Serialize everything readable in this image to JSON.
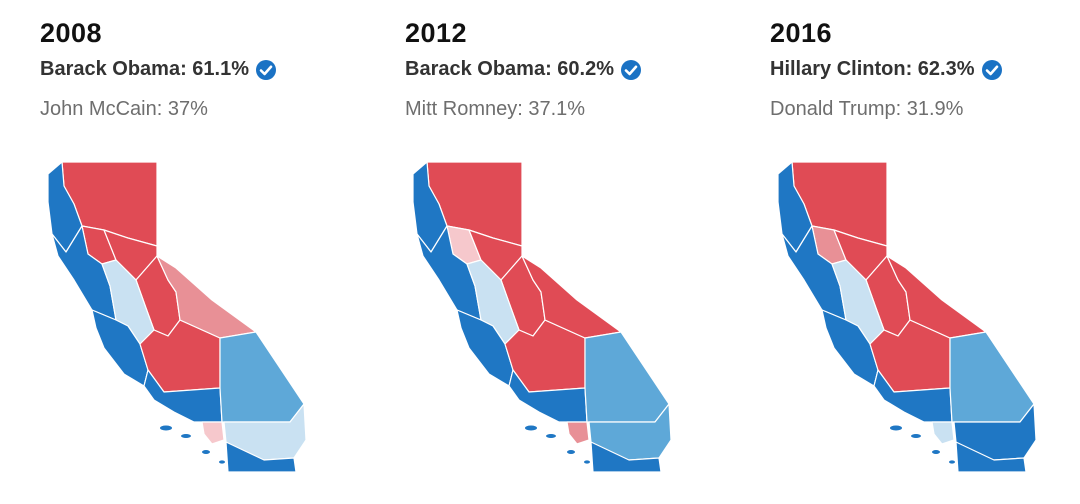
{
  "colors": {
    "dem_strong": "#1f77c4",
    "dem_medium": "#5ea8d8",
    "dem_light": "#c9e1f2",
    "rep_light": "#f6c8cc",
    "rep_medium": "#e89096",
    "rep_strong": "#e04b55",
    "check": "#1a72c4",
    "county_border": "#ffffff"
  },
  "icons": {
    "winner_check": "check-circle-icon"
  },
  "panels": [
    {
      "year": "2008",
      "winner": "Barack Obama: 61.1%",
      "loser": "John McCain: 37%",
      "county_shades": {
        "north_coast": "dem_strong",
        "far_north": "rep_strong",
        "north_inland": "rep_strong",
        "sacramento_valley": "rep_strong",
        "bay_area": "dem_strong",
        "sierra": "rep_strong",
        "central_coast": "dem_strong",
        "central_valley": "dem_light",
        "san_joaquin_south": "rep_strong",
        "eastern_sierra": "rep_medium",
        "la": "dem_strong",
        "orange": "rep_light",
        "inland_empire": "dem_medium",
        "san_diego": "dem_light",
        "imperial": "dem_strong"
      }
    },
    {
      "year": "2012",
      "winner": "Barack Obama: 60.2%",
      "loser": "Mitt Romney: 37.1%",
      "county_shades": {
        "north_coast": "dem_strong",
        "far_north": "rep_strong",
        "north_inland": "rep_light",
        "sacramento_valley": "rep_strong",
        "bay_area": "dem_strong",
        "sierra": "rep_strong",
        "central_coast": "dem_strong",
        "central_valley": "dem_light",
        "san_joaquin_south": "rep_strong",
        "eastern_sierra": "rep_strong",
        "la": "dem_strong",
        "orange": "rep_medium",
        "inland_empire": "dem_medium",
        "san_diego": "dem_medium",
        "imperial": "dem_strong"
      }
    },
    {
      "year": "2016",
      "winner": "Hillary Clinton: 62.3%",
      "loser": "Donald Trump: 31.9%",
      "county_shades": {
        "north_coast": "dem_strong",
        "far_north": "rep_strong",
        "north_inland": "rep_medium",
        "sacramento_valley": "rep_strong",
        "bay_area": "dem_strong",
        "sierra": "rep_strong",
        "central_coast": "dem_strong",
        "central_valley": "dem_light",
        "san_joaquin_south": "rep_strong",
        "eastern_sierra": "rep_strong",
        "la": "dem_strong",
        "orange": "dem_light",
        "inland_empire": "dem_medium",
        "san_diego": "dem_strong",
        "imperial": "dem_strong"
      }
    }
  ]
}
